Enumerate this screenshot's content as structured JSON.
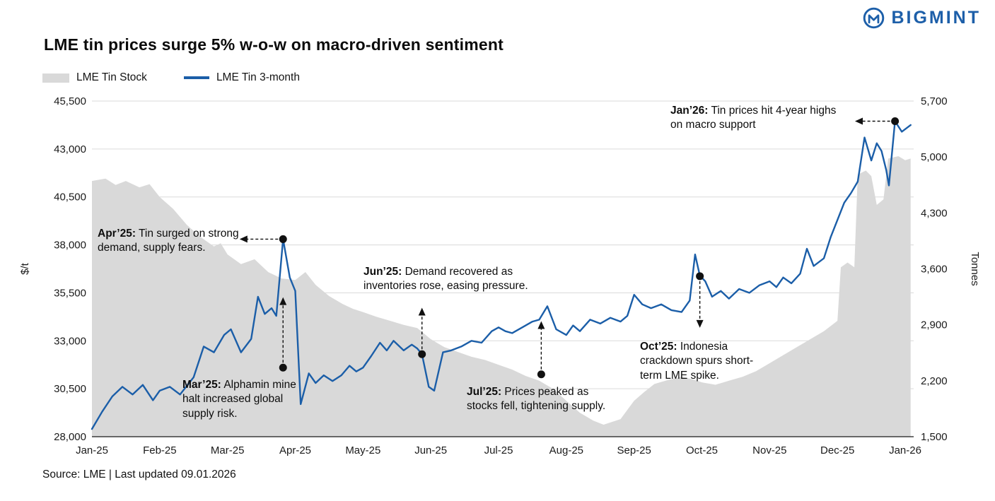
{
  "brand": {
    "name": "BIGMINT",
    "color": "#1d5fa9"
  },
  "title": "LME tin prices surge 5% w-o-w on macro-driven sentiment",
  "legend": [
    {
      "label": "LME Tin Stock",
      "swatch": "area",
      "color": "#d9d9d9"
    },
    {
      "label": "LME Tin 3-month",
      "swatch": "line",
      "color": "#1b5ea8"
    }
  ],
  "source_note": "Source: LME | Last updated 09.01.2026",
  "annotations": [
    {
      "label": "Apr’25:",
      "text": "Tin surged on strong demand, supply fears."
    },
    {
      "label": "Mar’25:",
      "text": "Alphamin mine halt increased global supply risk."
    },
    {
      "label": "Jun’25:",
      "text": "Demand recovered as inventories rose, easing pressure."
    },
    {
      "label": "Jul’25:",
      "text": "Prices peaked as stocks fell, tightening supply."
    },
    {
      "label": "Oct’25:",
      "text": "Indonesia crackdown spurs short-term LME spike."
    },
    {
      "label": "Jan’26:",
      "text": "Tin prices hit 4-year highs on macro support"
    }
  ],
  "chart_data": {
    "type": "line+area",
    "title": "LME tin prices surge 5% w-o-w on macro-driven sentiment",
    "x_axis": {
      "unit": "month",
      "ticks": [
        {
          "label": "Jan-25",
          "m": 0
        },
        {
          "label": "Feb-25",
          "m": 1
        },
        {
          "label": "Mar-25",
          "m": 2
        },
        {
          "label": "Apr-25",
          "m": 3
        },
        {
          "label": "May-25",
          "m": 4
        },
        {
          "label": "Jun-25",
          "m": 5
        },
        {
          "label": "Jul-25",
          "m": 6
        },
        {
          "label": "Aug-25",
          "m": 7
        },
        {
          "label": "Sep-25",
          "m": 8
        },
        {
          "label": "Oct-25",
          "m": 9
        },
        {
          "label": "Nov-25",
          "m": 10
        },
        {
          "label": "Dec-25",
          "m": 11
        },
        {
          "label": "Jan-26",
          "m": 12
        }
      ]
    },
    "price_axis": {
      "label": "$/t",
      "min": 28000,
      "max": 45500,
      "ticks": [
        {
          "label": "28,000",
          "value": 28000
        },
        {
          "label": "30,500",
          "value": 30500
        },
        {
          "label": "33,000",
          "value": 33000
        },
        {
          "label": "35,500",
          "value": 35500
        },
        {
          "label": "38,000",
          "value": 38000
        },
        {
          "label": "40,500",
          "value": 40500
        },
        {
          "label": "43,000",
          "value": 43000
        },
        {
          "label": "45,500",
          "value": 45500
        }
      ]
    },
    "stock_axis": {
      "label": "Tonnes",
      "min": 1500,
      "max": 5700,
      "ticks": [
        {
          "label": "1,500",
          "value": 1500
        },
        {
          "label": "2,200",
          "value": 2200
        },
        {
          "label": "2,900",
          "value": 2900
        },
        {
          "label": "3,600",
          "value": 3600
        },
        {
          "label": "4,300",
          "value": 4300
        },
        {
          "label": "5,000",
          "value": 5000
        },
        {
          "label": "5,700",
          "value": 5700
        }
      ]
    },
    "series": [
      {
        "name": "LME Tin Stock",
        "type": "area",
        "axis": "stock",
        "color": "#d9d9d9",
        "points": [
          [
            0,
            4700
          ],
          [
            0.2,
            4730
          ],
          [
            0.35,
            4650
          ],
          [
            0.5,
            4700
          ],
          [
            0.7,
            4620
          ],
          [
            0.85,
            4660
          ],
          [
            1.0,
            4500
          ],
          [
            1.2,
            4350
          ],
          [
            1.4,
            4150
          ],
          [
            1.6,
            4000
          ],
          [
            1.8,
            3880
          ],
          [
            1.9,
            3920
          ],
          [
            2.0,
            3780
          ],
          [
            2.2,
            3660
          ],
          [
            2.4,
            3720
          ],
          [
            2.6,
            3560
          ],
          [
            2.8,
            3480
          ],
          [
            3.0,
            3460
          ],
          [
            3.15,
            3560
          ],
          [
            3.3,
            3400
          ],
          [
            3.5,
            3260
          ],
          [
            3.7,
            3160
          ],
          [
            3.85,
            3100
          ],
          [
            4.0,
            3060
          ],
          [
            4.2,
            3000
          ],
          [
            4.4,
            2950
          ],
          [
            4.6,
            2900
          ],
          [
            4.8,
            2860
          ],
          [
            5.0,
            2720
          ],
          [
            5.2,
            2620
          ],
          [
            5.4,
            2560
          ],
          [
            5.6,
            2500
          ],
          [
            5.8,
            2460
          ],
          [
            6.0,
            2400
          ],
          [
            6.2,
            2340
          ],
          [
            6.4,
            2260
          ],
          [
            6.6,
            2200
          ],
          [
            6.8,
            2100
          ],
          [
            7.0,
            1950
          ],
          [
            7.2,
            1800
          ],
          [
            7.4,
            1700
          ],
          [
            7.55,
            1650
          ],
          [
            7.8,
            1720
          ],
          [
            8.0,
            1950
          ],
          [
            8.15,
            2060
          ],
          [
            8.3,
            2160
          ],
          [
            8.5,
            2210
          ],
          [
            8.7,
            2250
          ],
          [
            8.9,
            2210
          ],
          [
            9.0,
            2180
          ],
          [
            9.2,
            2150
          ],
          [
            9.4,
            2200
          ],
          [
            9.6,
            2250
          ],
          [
            9.8,
            2320
          ],
          [
            10.0,
            2420
          ],
          [
            10.2,
            2520
          ],
          [
            10.4,
            2620
          ],
          [
            10.6,
            2720
          ],
          [
            10.8,
            2820
          ],
          [
            11.0,
            2950
          ],
          [
            11.05,
            3620
          ],
          [
            11.15,
            3680
          ],
          [
            11.25,
            3620
          ],
          [
            11.3,
            4780
          ],
          [
            11.42,
            4830
          ],
          [
            11.5,
            4760
          ],
          [
            11.58,
            4400
          ],
          [
            11.68,
            4470
          ],
          [
            11.75,
            4980
          ],
          [
            11.9,
            5010
          ],
          [
            12.0,
            4960
          ],
          [
            12.08,
            4980
          ]
        ]
      },
      {
        "name": "LME Tin 3-month",
        "type": "line",
        "axis": "price",
        "color": "#1b5ea8",
        "points": [
          [
            0,
            28400
          ],
          [
            0.15,
            29300
          ],
          [
            0.3,
            30100
          ],
          [
            0.45,
            30600
          ],
          [
            0.6,
            30200
          ],
          [
            0.75,
            30700
          ],
          [
            0.9,
            29900
          ],
          [
            1.0,
            30400
          ],
          [
            1.15,
            30600
          ],
          [
            1.3,
            30200
          ],
          [
            1.5,
            31100
          ],
          [
            1.65,
            32700
          ],
          [
            1.8,
            32400
          ],
          [
            1.95,
            33300
          ],
          [
            2.05,
            33600
          ],
          [
            2.2,
            32400
          ],
          [
            2.35,
            33100
          ],
          [
            2.45,
            35300
          ],
          [
            2.55,
            34400
          ],
          [
            2.65,
            34700
          ],
          [
            2.72,
            34300
          ],
          [
            2.82,
            38300
          ],
          [
            2.92,
            36300
          ],
          [
            3.0,
            35600
          ],
          [
            3.08,
            29700
          ],
          [
            3.2,
            31300
          ],
          [
            3.3,
            30800
          ],
          [
            3.42,
            31200
          ],
          [
            3.55,
            30900
          ],
          [
            3.68,
            31200
          ],
          [
            3.8,
            31700
          ],
          [
            3.9,
            31400
          ],
          [
            4.0,
            31600
          ],
          [
            4.12,
            32200
          ],
          [
            4.25,
            32900
          ],
          [
            4.35,
            32500
          ],
          [
            4.45,
            33000
          ],
          [
            4.6,
            32500
          ],
          [
            4.72,
            32800
          ],
          [
            4.8,
            32600
          ],
          [
            4.87,
            32300
          ],
          [
            4.97,
            30600
          ],
          [
            5.05,
            30400
          ],
          [
            5.18,
            32400
          ],
          [
            5.3,
            32500
          ],
          [
            5.45,
            32700
          ],
          [
            5.6,
            33000
          ],
          [
            5.75,
            32900
          ],
          [
            5.9,
            33500
          ],
          [
            6.0,
            33700
          ],
          [
            6.1,
            33500
          ],
          [
            6.2,
            33400
          ],
          [
            6.35,
            33700
          ],
          [
            6.5,
            34000
          ],
          [
            6.6,
            34100
          ],
          [
            6.72,
            34800
          ],
          [
            6.85,
            33600
          ],
          [
            7.0,
            33300
          ],
          [
            7.1,
            33800
          ],
          [
            7.2,
            33500
          ],
          [
            7.35,
            34100
          ],
          [
            7.5,
            33900
          ],
          [
            7.65,
            34200
          ],
          [
            7.8,
            34000
          ],
          [
            7.9,
            34300
          ],
          [
            8.0,
            35400
          ],
          [
            8.12,
            34900
          ],
          [
            8.25,
            34700
          ],
          [
            8.4,
            34900
          ],
          [
            8.55,
            34600
          ],
          [
            8.7,
            34500
          ],
          [
            8.82,
            35100
          ],
          [
            8.9,
            37500
          ],
          [
            8.97,
            36400
          ],
          [
            9.05,
            36100
          ],
          [
            9.15,
            35300
          ],
          [
            9.28,
            35600
          ],
          [
            9.4,
            35200
          ],
          [
            9.55,
            35700
          ],
          [
            9.7,
            35500
          ],
          [
            9.85,
            35900
          ],
          [
            10.0,
            36100
          ],
          [
            10.1,
            35800
          ],
          [
            10.2,
            36300
          ],
          [
            10.32,
            36000
          ],
          [
            10.45,
            36500
          ],
          [
            10.55,
            37800
          ],
          [
            10.65,
            36900
          ],
          [
            10.8,
            37300
          ],
          [
            10.9,
            38400
          ],
          [
            11.0,
            39300
          ],
          [
            11.1,
            40200
          ],
          [
            11.2,
            40700
          ],
          [
            11.3,
            41300
          ],
          [
            11.4,
            43600
          ],
          [
            11.5,
            42400
          ],
          [
            11.58,
            43300
          ],
          [
            11.65,
            42900
          ],
          [
            11.72,
            41900
          ],
          [
            11.76,
            41100
          ],
          [
            11.85,
            44450
          ],
          [
            11.95,
            43900
          ],
          [
            12.08,
            44250
          ]
        ]
      }
    ],
    "markers": [
      {
        "id": "apr25",
        "dot": {
          "m": 2.82,
          "v": 38300
        },
        "tip": {
          "m": 2.2,
          "v": 38300
        }
      },
      {
        "id": "mar25",
        "dot": {
          "m": 2.82,
          "v": 31600
        },
        "tip": {
          "m": 2.82,
          "v": 35200
        }
      },
      {
        "id": "jun25",
        "dot": {
          "m": 4.87,
          "v": 32300
        },
        "tip": {
          "m": 4.87,
          "v": 34650
        }
      },
      {
        "id": "jul25",
        "dot": {
          "m": 6.63,
          "v": 31250
        },
        "tip": {
          "m": 6.63,
          "v": 33950
        }
      },
      {
        "id": "oct25",
        "dot": {
          "m": 8.97,
          "v": 36370
        },
        "tip": {
          "m": 8.97,
          "v": 33750
        }
      },
      {
        "id": "jan26",
        "dot": {
          "m": 11.85,
          "v": 44450
        },
        "tip": {
          "m": 11.28,
          "v": 44450
        }
      }
    ]
  }
}
